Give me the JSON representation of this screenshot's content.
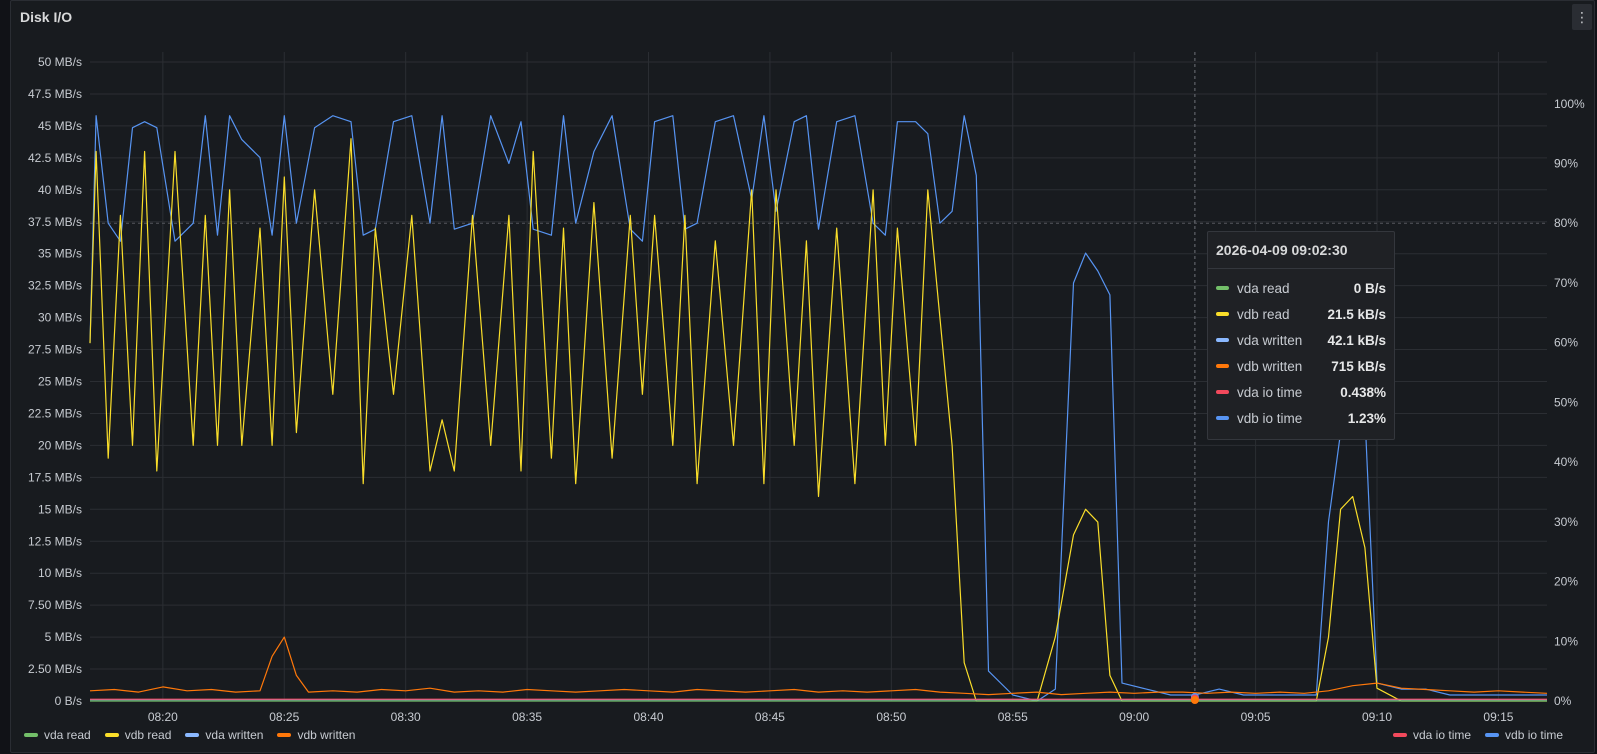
{
  "panel": {
    "title": "Disk I/O",
    "menu_label": "⋮"
  },
  "colors": {
    "vda_read": "#73bf69",
    "vdb_read": "#fade2a",
    "vda_written": "#8ab8ff",
    "vdb_written": "#ff780a",
    "vda_io_time": "#f2495c",
    "vdb_io_time": "#5794f2"
  },
  "legend_left": [
    {
      "label": "vda read",
      "key": "vda_read"
    },
    {
      "label": "vdb read",
      "key": "vdb_read"
    },
    {
      "label": "vda written",
      "key": "vda_written"
    },
    {
      "label": "vdb written",
      "key": "vdb_written"
    }
  ],
  "legend_right": [
    {
      "label": "vda io time",
      "key": "vda_io_time"
    },
    {
      "label": "vdb io time",
      "key": "vdb_io_time"
    }
  ],
  "tooltip": {
    "time": "2026-04-09 09:02:30",
    "rows": [
      {
        "name": "vda read",
        "value": "0 B/s",
        "key": "vda_read"
      },
      {
        "name": "vdb read",
        "value": "21.5 kB/s",
        "key": "vdb_read"
      },
      {
        "name": "vda written",
        "value": "42.1 kB/s",
        "key": "vda_written"
      },
      {
        "name": "vdb written",
        "value": "715 kB/s",
        "key": "vdb_written"
      },
      {
        "name": "vda io time",
        "value": "0.438%",
        "key": "vda_io_time"
      },
      {
        "name": "vdb io time",
        "value": "1.23%",
        "key": "vdb_io_time"
      }
    ]
  },
  "chart_data": {
    "type": "line",
    "x_start": "08:17",
    "x_end": "09:17",
    "x_ticks": [
      "08:20",
      "08:25",
      "08:30",
      "08:35",
      "08:40",
      "08:45",
      "08:50",
      "08:55",
      "09:00",
      "09:05",
      "09:10",
      "09:15"
    ],
    "y_left_ticks": [
      "0 B/s",
      "2.50 MB/s",
      "5 MB/s",
      "7.50 MB/s",
      "10 MB/s",
      "12.5 MB/s",
      "15 MB/s",
      "17.5 MB/s",
      "20 MB/s",
      "22.5 MB/s",
      "25 MB/s",
      "27.5 MB/s",
      "30 MB/s",
      "32.5 MB/s",
      "35 MB/s",
      "37.5 MB/s",
      "40 MB/s",
      "42.5 MB/s",
      "45 MB/s",
      "47.5 MB/s",
      "50 MB/s"
    ],
    "y_left_range": [
      0,
      50
    ],
    "y_right_ticks": [
      "0%",
      "10%",
      "20%",
      "30%",
      "40%",
      "50%",
      "60%",
      "70%",
      "80%",
      "90%",
      "100%"
    ],
    "y_right_range": [
      0,
      107
    ],
    "threshold_right_percent": 80,
    "hover_time": "09:02:30",
    "series": [
      {
        "name": "vdb io time",
        "key": "vdb_io_time",
        "axis": "right",
        "x": [
          "08:17",
          "08:17:15",
          "08:17:45",
          "08:18:15",
          "08:18:45",
          "08:19:15",
          "08:19:45",
          "08:20:30",
          "08:21:15",
          "08:21:45",
          "08:22:15",
          "08:22:45",
          "08:23:15",
          "08:24:00",
          "08:24:30",
          "08:25:00",
          "08:25:30",
          "08:26:15",
          "08:27:00",
          "08:27:45",
          "08:28:15",
          "08:28:45",
          "08:29:30",
          "08:30:15",
          "08:31:00",
          "08:31:30",
          "08:32:00",
          "08:32:45",
          "08:33:30",
          "08:34:15",
          "08:34:45",
          "08:35:15",
          "08:36:00",
          "08:36:30",
          "08:37:00",
          "08:37:45",
          "08:38:30",
          "08:39:15",
          "08:39:45",
          "08:40:15",
          "08:41:00",
          "08:41:30",
          "08:42:00",
          "08:42:45",
          "08:43:30",
          "08:44:15",
          "08:44:45",
          "08:45:15",
          "08:46:00",
          "08:46:30",
          "08:47:00",
          "08:47:45",
          "08:48:30",
          "08:49:15",
          "08:49:45",
          "08:50:15",
          "08:51:00",
          "08:51:30",
          "08:52:00",
          "08:52:30",
          "08:53:00",
          "08:53:30",
          "08:54:00",
          "08:55:00",
          "08:56:00",
          "08:56:45",
          "08:57:30",
          "08:58:00",
          "08:58:30",
          "08:59:00",
          "08:59:30",
          "09:00:30",
          "09:01:30",
          "09:02:30",
          "09:03:30",
          "09:04:30",
          "09:05:30",
          "09:06:30",
          "09:07:30",
          "09:08:00",
          "09:08:30",
          "09:09:00",
          "09:09:30",
          "09:10:00",
          "09:11:00",
          "09:12:00",
          "09:13:00",
          "09:14:00",
          "09:15:00",
          "09:16:00",
          "09:17:00"
        ],
        "y": [
          60,
          98,
          80,
          77,
          96,
          97,
          96,
          77,
          80,
          98,
          78,
          98,
          94,
          91,
          78,
          98,
          80,
          96,
          98,
          97,
          78,
          79,
          97,
          98,
          80,
          98,
          79,
          80,
          98,
          90,
          97,
          79,
          78,
          98,
          80,
          92,
          98,
          79,
          77,
          97,
          98,
          79,
          80,
          97,
          98,
          84,
          98,
          82,
          97,
          98,
          79,
          97,
          98,
          80,
          78,
          97,
          97,
          95,
          80,
          82,
          98,
          88,
          5,
          1,
          0,
          2,
          70,
          75,
          72,
          68,
          3,
          2,
          1,
          1,
          2,
          1,
          1,
          1,
          1,
          30,
          45,
          52,
          48,
          3,
          2,
          2,
          1,
          1,
          1,
          1,
          1
        ]
      },
      {
        "name": "vdb read",
        "key": "vdb_read",
        "axis": "left",
        "x": [
          "08:17",
          "08:17:15",
          "08:17:45",
          "08:18:15",
          "08:18:45",
          "08:19:15",
          "08:19:45",
          "08:20:30",
          "08:21:15",
          "08:21:45",
          "08:22:15",
          "08:22:45",
          "08:23:15",
          "08:24:00",
          "08:24:30",
          "08:25:00",
          "08:25:30",
          "08:26:15",
          "08:27:00",
          "08:27:45",
          "08:28:15",
          "08:28:45",
          "08:29:30",
          "08:30:15",
          "08:31:00",
          "08:31:30",
          "08:32:00",
          "08:32:45",
          "08:33:30",
          "08:34:15",
          "08:34:45",
          "08:35:15",
          "08:36:00",
          "08:36:30",
          "08:37:00",
          "08:37:45",
          "08:38:30",
          "08:39:15",
          "08:39:45",
          "08:40:15",
          "08:41:00",
          "08:41:30",
          "08:42:00",
          "08:42:45",
          "08:43:30",
          "08:44:15",
          "08:44:45",
          "08:45:15",
          "08:46:00",
          "08:46:30",
          "08:47:00",
          "08:47:45",
          "08:48:30",
          "08:49:15",
          "08:49:45",
          "08:50:15",
          "08:51:00",
          "08:51:30",
          "08:52:00",
          "08:52:30",
          "08:53:00",
          "08:53:30",
          "08:54:00",
          "08:55:00",
          "08:56:00",
          "08:56:45",
          "08:57:30",
          "08:58:00",
          "08:58:30",
          "08:59:00",
          "08:59:30",
          "09:00:30",
          "09:01:30",
          "09:02:30",
          "09:03:30",
          "09:04:30",
          "09:05:30",
          "09:06:30",
          "09:07:30",
          "09:08:00",
          "09:08:30",
          "09:09:00",
          "09:09:30",
          "09:10:00",
          "09:11:00",
          "09:12:00",
          "09:13:00",
          "09:14:00",
          "09:15:00",
          "09:16:00",
          "09:17:00"
        ],
        "y": [
          28,
          43,
          19,
          38,
          20,
          43,
          18,
          43,
          20,
          38,
          20,
          40,
          20,
          37,
          20,
          41,
          21,
          40,
          24,
          44,
          17,
          37,
          24,
          38,
          18,
          22,
          18,
          38,
          20,
          38,
          18,
          43,
          19,
          37,
          17,
          39,
          19,
          38,
          24,
          38,
          20,
          38,
          17,
          36,
          20,
          40,
          17,
          40,
          20,
          36,
          16,
          37,
          17,
          40,
          20,
          37,
          20,
          40,
          30,
          20,
          3,
          0,
          0,
          0,
          0,
          5,
          13,
          15,
          14,
          2,
          0,
          0,
          0,
          0,
          0,
          0,
          0,
          0,
          0,
          5,
          15,
          16,
          12,
          1,
          0,
          0,
          0,
          0,
          0,
          0,
          0
        ]
      },
      {
        "name": "vdb written",
        "key": "vdb_written",
        "axis": "left",
        "x": [
          "08:17",
          "08:18",
          "08:19",
          "08:20",
          "08:21",
          "08:22",
          "08:23",
          "08:24",
          "08:24:30",
          "08:25",
          "08:25:30",
          "08:26",
          "08:27",
          "08:28",
          "08:29",
          "08:30",
          "08:31",
          "08:32",
          "08:33",
          "08:34",
          "08:35",
          "08:36",
          "08:37",
          "08:38",
          "08:39",
          "08:40",
          "08:41",
          "08:42",
          "08:43",
          "08:44",
          "08:45",
          "08:46",
          "08:47",
          "08:48",
          "08:49",
          "08:50",
          "08:51",
          "08:52",
          "08:53",
          "08:54",
          "08:55",
          "08:56",
          "08:57",
          "08:58",
          "08:59",
          "09:00",
          "09:01",
          "09:02",
          "09:03",
          "09:04",
          "09:05",
          "09:06",
          "09:07",
          "09:08",
          "09:09",
          "09:10",
          "09:11",
          "09:12",
          "09:13",
          "09:14",
          "09:15",
          "09:16",
          "09:17"
        ],
        "y": [
          0.8,
          0.9,
          0.7,
          1.1,
          0.8,
          0.9,
          0.7,
          0.8,
          3.5,
          5,
          2,
          0.7,
          0.8,
          0.7,
          0.9,
          0.8,
          1,
          0.7,
          0.8,
          0.7,
          0.9,
          0.8,
          0.7,
          0.8,
          0.9,
          0.8,
          0.7,
          0.9,
          0.8,
          0.7,
          0.8,
          0.9,
          0.7,
          0.8,
          0.7,
          0.8,
          0.9,
          0.7,
          0.6,
          0.5,
          0.6,
          0.7,
          0.5,
          0.6,
          0.7,
          0.6,
          0.7,
          0.7,
          0.6,
          0.7,
          0.6,
          0.7,
          0.6,
          0.8,
          1.2,
          1.4,
          1.0,
          0.9,
          0.8,
          0.7,
          0.8,
          0.7,
          0.6
        ]
      },
      {
        "name": "vda written",
        "key": "vda_written",
        "axis": "left",
        "x": [
          "08:17",
          "08:20",
          "08:25",
          "08:30",
          "08:35",
          "08:40",
          "08:45",
          "08:50",
          "08:55",
          "09:00",
          "09:05",
          "09:10",
          "09:15",
          "09:17"
        ],
        "y": [
          0.1,
          0.1,
          0.1,
          0.1,
          0.1,
          0.1,
          0.1,
          0.1,
          0.1,
          0.1,
          0.1,
          0.1,
          0.1,
          0.1
        ]
      },
      {
        "name": "vda read",
        "key": "vda_read",
        "axis": "left",
        "x": [
          "08:17",
          "09:17"
        ],
        "y": [
          0,
          0
        ]
      },
      {
        "name": "vda io time",
        "key": "vda_io_time",
        "axis": "right",
        "x": [
          "08:17",
          "09:17"
        ],
        "y": [
          0.3,
          0.3
        ]
      }
    ]
  }
}
